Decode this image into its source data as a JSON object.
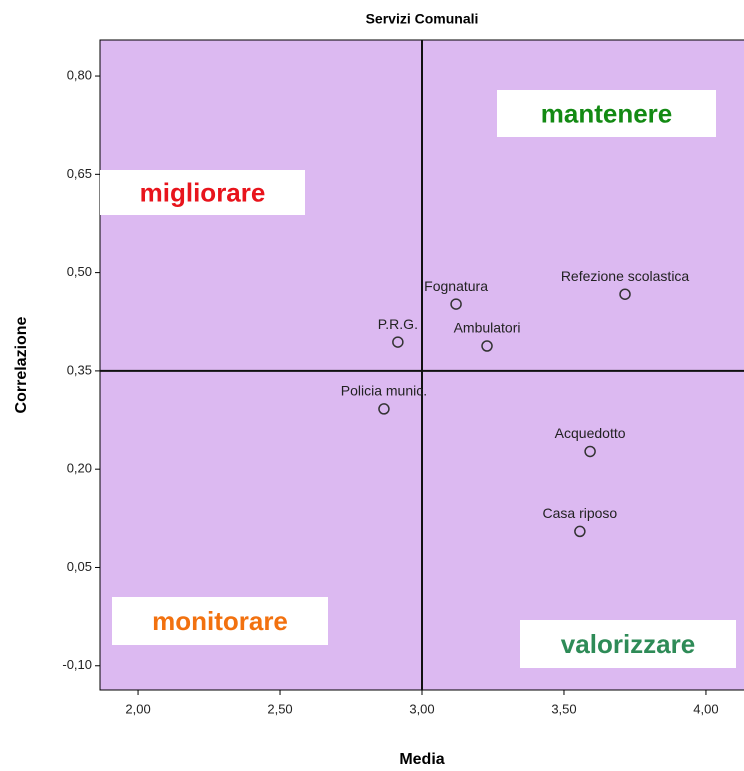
{
  "chart_data": {
    "type": "scatter",
    "title": "Servizi Comunali",
    "x_label": "Media",
    "y_label": "Correlazione",
    "series": [
      {
        "name": null,
        "color": "#333333",
        "labels": [
          "Refezione scolastica",
          "Fognatura",
          "P.R.G.",
          "Ambulatori",
          "Policia munic.",
          "Acquedotto",
          "Casa riposo"
        ],
        "x": [
          3.715,
          3.12,
          2.915,
          3.229,
          2.866,
          3.592,
          3.556
        ],
        "values": [
          0.467,
          0.452,
          0.394,
          0.388,
          0.292,
          0.227,
          0.105
        ]
      }
    ],
    "xlim": [
      1.866,
      4.134
    ],
    "xticks": [
      {
        "value": 2.0,
        "label": "2,00"
      },
      {
        "value": 2.5,
        "label": "2,50"
      },
      {
        "value": 3.0,
        "label": "3,00"
      },
      {
        "value": 3.5,
        "label": "3,50"
      },
      {
        "value": 4.0,
        "label": "4,00"
      }
    ],
    "ylim": [
      -0.137,
      0.855
    ],
    "yticks": [
      {
        "value": -0.1,
        "label": "-0,10"
      },
      {
        "value": 0.05,
        "label": "0,05"
      },
      {
        "value": 0.2,
        "label": "0,20"
      },
      {
        "value": 0.35,
        "label": "0,35"
      },
      {
        "value": 0.5,
        "label": "0,50"
      },
      {
        "value": 0.65,
        "label": "0,65"
      },
      {
        "value": 0.8,
        "label": "0,80"
      }
    ],
    "reference_lines": {
      "x": 3.0,
      "y": 0.35
    },
    "background": "#dcb9f1",
    "annotations": [
      {
        "text": "mantenere",
        "color": "#138a13"
      },
      {
        "text": "migliorare",
        "color": "#e8141c"
      },
      {
        "text": "monitorare",
        "color": "#f2710f"
      },
      {
        "text": "valorizzare",
        "color": "#2e8b57"
      }
    ]
  }
}
